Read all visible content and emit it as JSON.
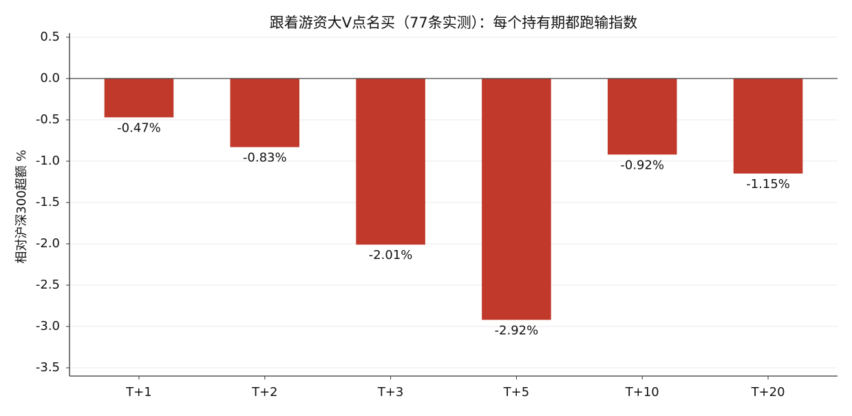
{
  "chart_data": {
    "type": "bar",
    "title": "跟着游资大V点名买（77条实测）：每个持有期都跑输指数",
    "y_label": "相对沪深300超额 %",
    "categories": [
      "T+1",
      "T+2",
      "T+3",
      "T+5",
      "T+10",
      "T+20"
    ],
    "values": [
      -0.47,
      -0.83,
      -2.01,
      -2.92,
      -0.92,
      -1.15
    ],
    "value_labels": [
      "-0.47%",
      "-0.83%",
      "-2.01%",
      "-2.92%",
      "-0.92%",
      "-1.15%"
    ],
    "color": "#c0392b",
    "ylim": [
      -3.6,
      0.55
    ],
    "yticks": [
      0.5,
      {
        "value": 0,
        "label": "0.0"
      },
      -0.5,
      {
        "value": -1,
        "label": "-1.0"
      },
      -1.5,
      {
        "value": -2,
        "label": "-2.0"
      },
      -2.5,
      {
        "value": -3,
        "label": "-3.0"
      },
      -3.5
    ],
    "grid": true
  }
}
